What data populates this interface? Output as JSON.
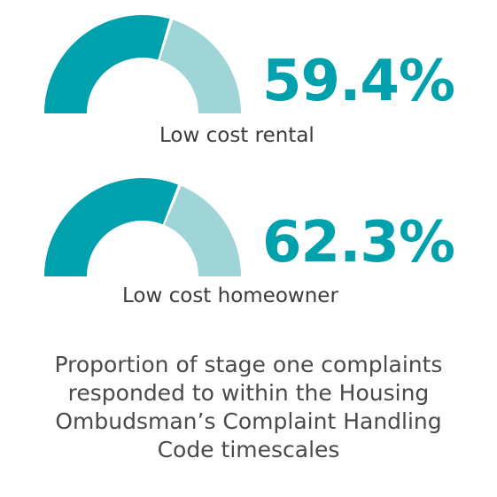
{
  "colors": {
    "primary": "#00a1ad",
    "secondary": "#9fd5d6",
    "label_text": "#3c3c3c",
    "caption_text": "#4a4a4a"
  },
  "chart_data": [
    {
      "type": "gauge",
      "label": "Low cost rental",
      "value": 59.4,
      "value_text": "59.4%",
      "max": 100
    },
    {
      "type": "gauge",
      "label": "Low cost homeowner",
      "value": 62.3,
      "value_text": "62.3%",
      "max": 100
    }
  ],
  "caption": {
    "lines": [
      "Proportion of stage one complaints",
      "responded to within the Housing",
      "Ombudsman’s Complaint Handling",
      "Code timescales"
    ]
  }
}
